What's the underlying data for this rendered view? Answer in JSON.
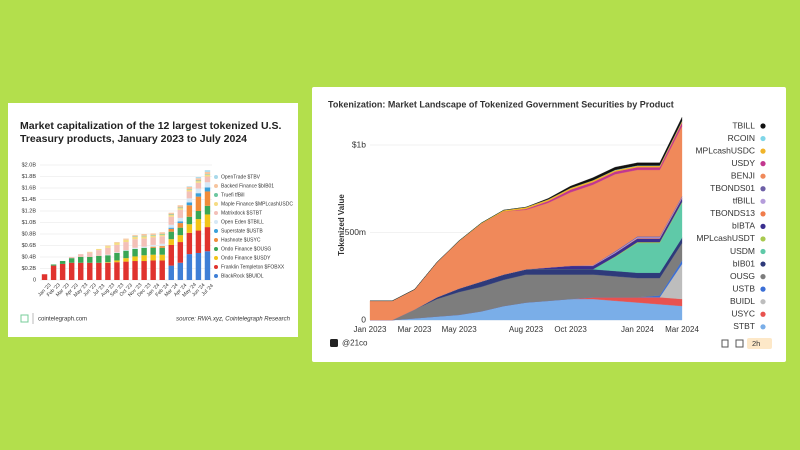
{
  "chart_data": [
    {
      "type": "bar",
      "title": "Market capitalization of the 12 largest tokenized U.S. Treasury products, January 2023 to July 2024",
      "footer_left": "cointelegraph.com",
      "source": "source: RWA.xyz, Cointelegraph Research",
      "categories": [
        "Jan '23",
        "Feb '23",
        "Mar '23",
        "Apr '23",
        "May '23",
        "Jun '23",
        "Jul '23",
        "Aug '23",
        "Sep '23",
        "Oct '23",
        "Nov '23",
        "Dec '23",
        "Jan '24",
        "Feb '24",
        "Mar '24",
        "Apr '24",
        "May '24",
        "Jun '24",
        "Jul '24"
      ],
      "ylim": [
        0,
        2.0
      ],
      "yticks": [
        0,
        {
          "value": 0.2,
          "label": "$0.2B"
        },
        {
          "value": 0.4,
          "label": "$0.4B"
        },
        {
          "value": 0.6,
          "label": "$0.6B"
        },
        {
          "value": 0.8,
          "label": "$0.8B"
        },
        {
          "value": 1.0,
          "label": "$1.0B"
        },
        {
          "value": 1.2,
          "label": "$1.2B"
        },
        {
          "value": 1.4,
          "label": "$1.4B"
        },
        {
          "value": 1.6,
          "label": "$1.6B"
        },
        {
          "value": 1.8,
          "label": "$1.8B"
        },
        {
          "value": 2.0,
          "label": "$2.0B"
        }
      ],
      "grid": true,
      "stacked": true,
      "series": [
        {
          "name": "OpenTrade $TBV",
          "color": "#a9d9ea",
          "values": [
            0,
            0,
            0,
            0,
            0,
            0,
            0,
            0,
            0,
            0,
            0,
            0,
            0,
            0,
            0,
            0,
            0.01,
            0.02,
            0.03
          ]
        },
        {
          "name": "Backed Finance $bIB01",
          "color": "#f7c59f",
          "values": [
            0,
            0,
            0,
            0,
            0,
            0,
            0,
            0.01,
            0.01,
            0.02,
            0.02,
            0.03,
            0.03,
            0.03,
            0.03,
            0.04,
            0.04,
            0.04,
            0.04
          ]
        },
        {
          "name": "Truefi tfBill",
          "color": "#6cc7a0",
          "values": [
            0,
            0,
            0,
            0,
            0,
            0,
            0,
            0,
            0,
            0,
            0.01,
            0.01,
            0.01,
            0.01,
            0.01,
            0.01,
            0.01,
            0.01,
            0.01
          ]
        },
        {
          "name": "Maple Finance $MPLcashUSDC",
          "color": "#f5dc84",
          "values": [
            0,
            0,
            0,
            0,
            0,
            0.01,
            0.02,
            0.03,
            0.04,
            0.04,
            0.04,
            0.04,
            0.03,
            0.03,
            0.03,
            0.03,
            0.03,
            0.03,
            0.03
          ]
        },
        {
          "name": "Matrixdock $STBT",
          "color": "#f3c0b8",
          "values": [
            0,
            0,
            0,
            0.02,
            0.05,
            0.08,
            0.1,
            0.12,
            0.13,
            0.14,
            0.15,
            0.14,
            0.13,
            0.13,
            0.14,
            0.14,
            0.12,
            0.1,
            0.1
          ]
        },
        {
          "name": "Open Eden $TBILL",
          "color": "#d6e8f6",
          "values": [
            0,
            0,
            0,
            0,
            0,
            0,
            0,
            0.01,
            0.01,
            0.01,
            0.02,
            0.02,
            0.03,
            0.04,
            0.05,
            0.06,
            0.07,
            0.08,
            0.09
          ]
        },
        {
          "name": "Superstate $USTB",
          "color": "#3aa0d9",
          "values": [
            0,
            0,
            0,
            0,
            0,
            0,
            0,
            0,
            0,
            0,
            0,
            0,
            0,
            0,
            0.02,
            0.03,
            0.05,
            0.06,
            0.07
          ]
        },
        {
          "name": "Hashnote $USYC",
          "color": "#f08c3a",
          "values": [
            0,
            0,
            0,
            0,
            0,
            0,
            0,
            0,
            0,
            0,
            0,
            0,
            0.02,
            0.03,
            0.05,
            0.08,
            0.2,
            0.25,
            0.25
          ]
        },
        {
          "name": "Ondo Finance $OUSG",
          "color": "#3aa655",
          "values": [
            0,
            0.02,
            0.05,
            0.08,
            0.1,
            0.1,
            0.12,
            0.12,
            0.13,
            0.13,
            0.13,
            0.13,
            0.12,
            0.12,
            0.13,
            0.13,
            0.13,
            0.14,
            0.15
          ]
        },
        {
          "name": "Ondo Finance $USDY",
          "color": "#f2c418",
          "values": [
            0,
            0,
            0,
            0,
            0,
            0,
            0,
            0.01,
            0.03,
            0.06,
            0.08,
            0.1,
            0.1,
            0.1,
            0.1,
            0.12,
            0.15,
            0.2,
            0.22
          ]
        },
        {
          "name": "Franklin Templeton $FOBXX",
          "color": "#e0332e",
          "values": [
            0.1,
            0.25,
            0.28,
            0.3,
            0.3,
            0.3,
            0.3,
            0.3,
            0.31,
            0.32,
            0.33,
            0.33,
            0.34,
            0.34,
            0.36,
            0.36,
            0.37,
            0.39,
            0.42
          ]
        },
        {
          "name": "BlackRock $BUIDL",
          "color": "#3f7fd6",
          "values": [
            0,
            0,
            0,
            0,
            0,
            0,
            0,
            0,
            0,
            0,
            0,
            0,
            0,
            0,
            0.25,
            0.3,
            0.45,
            0.47,
            0.5
          ]
        }
      ]
    },
    {
      "type": "area",
      "title": "Tokenization: Market Landscape of Tokenized Government Securities by Product",
      "y_label": "Tokenized Value",
      "footer_left": "@21co",
      "badge": "2h",
      "categories": [
        "Jan 2023",
        null,
        "Mar 2023",
        null,
        "May 2023",
        null,
        null,
        "Aug 2023",
        null,
        "Oct 2023",
        null,
        null,
        "Jan 2024",
        null,
        "Mar 2024"
      ],
      "ylim": [
        0,
        1170
      ],
      "yticks": [
        0,
        {
          "value": 500,
          "label": "500m"
        },
        {
          "value": 1000,
          "label": "$1b"
        }
      ],
      "grid": true,
      "stacked": true,
      "series": [
        {
          "name": "TBILL",
          "color": "#111111",
          "values": [
            0,
            0,
            0,
            0,
            0,
            0,
            0,
            0,
            5,
            10,
            15,
            15,
            15,
            15,
            20
          ]
        },
        {
          "name": "RCOIN",
          "color": "#7fd6e8",
          "values": [
            0,
            0,
            0,
            0,
            0,
            0,
            0,
            0,
            0,
            0,
            0,
            2,
            2,
            2,
            2
          ]
        },
        {
          "name": "MPLcashUSDC",
          "color": "#f0b429",
          "values": [
            0,
            0,
            0,
            0,
            3,
            5,
            8,
            10,
            10,
            10,
            10,
            8,
            8,
            8,
            8
          ]
        },
        {
          "name": "USDY",
          "color": "#c2378f",
          "values": [
            0,
            0,
            0,
            0,
            0,
            0,
            0,
            5,
            10,
            15,
            15,
            15,
            15,
            15,
            20
          ]
        },
        {
          "name": "BENJI",
          "color": "#f0895a",
          "values": [
            110,
            110,
            115,
            200,
            270,
            330,
            360,
            340,
            370,
            420,
            460,
            440,
            380,
            380,
            400
          ]
        },
        {
          "name": "TBONDS01",
          "color": "#6d5fa6",
          "values": [
            0,
            0,
            0,
            0,
            0,
            0,
            0,
            0,
            0,
            0,
            0,
            5,
            5,
            5,
            5
          ]
        },
        {
          "name": "tfBILL",
          "color": "#b59ddb",
          "values": [
            0,
            0,
            0,
            0,
            0,
            0,
            0,
            0,
            0,
            0,
            3,
            5,
            5,
            5,
            5
          ]
        },
        {
          "name": "TBONDS13",
          "color": "#f07c4b",
          "values": [
            0,
            0,
            0,
            0,
            0,
            0,
            0,
            0,
            0,
            0,
            0,
            0,
            3,
            3,
            3
          ]
        },
        {
          "name": "bIBTA",
          "color": "#3a2f8f",
          "values": [
            0,
            0,
            0,
            0,
            0,
            0,
            0,
            0,
            10,
            20,
            20,
            20,
            20,
            20,
            20
          ]
        },
        {
          "name": "MPLcashUSDT",
          "color": "#a8c94f",
          "values": [
            0,
            0,
            0,
            0,
            0,
            0,
            0,
            0,
            0,
            0,
            0,
            3,
            5,
            5,
            5
          ]
        },
        {
          "name": "USDM",
          "color": "#5fc9a8",
          "values": [
            0,
            0,
            0,
            0,
            0,
            0,
            0,
            0,
            0,
            0,
            0,
            80,
            170,
            170,
            200
          ]
        },
        {
          "name": "bIB01",
          "color": "#2e3a7a",
          "values": [
            0,
            0,
            0,
            10,
            20,
            30,
            30,
            30,
            30,
            30,
            30,
            30,
            30,
            30,
            30
          ]
        },
        {
          "name": "OUSG",
          "color": "#7d7d7d",
          "values": [
            0,
            0,
            50,
            100,
            130,
            140,
            150,
            160,
            150,
            140,
            130,
            120,
            110,
            100,
            100
          ]
        },
        {
          "name": "USTB",
          "color": "#3b6fd6",
          "values": [
            0,
            0,
            0,
            0,
            0,
            0,
            0,
            0,
            0,
            0,
            0,
            0,
            0,
            10,
            20
          ]
        },
        {
          "name": "BUIDL",
          "color": "#bdbdbd",
          "values": [
            0,
            0,
            0,
            0,
            0,
            0,
            0,
            0,
            0,
            0,
            0,
            0,
            0,
            0,
            200
          ]
        },
        {
          "name": "USYC",
          "color": "#e8524f",
          "values": [
            0,
            0,
            0,
            0,
            0,
            0,
            0,
            0,
            0,
            0,
            10,
            20,
            30,
            40,
            40
          ]
        },
        {
          "name": "STBT",
          "color": "#7aaee8",
          "values": [
            0,
            0,
            10,
            20,
            30,
            50,
            80,
            100,
            110,
            120,
            120,
            110,
            100,
            90,
            80
          ]
        }
      ]
    }
  ]
}
